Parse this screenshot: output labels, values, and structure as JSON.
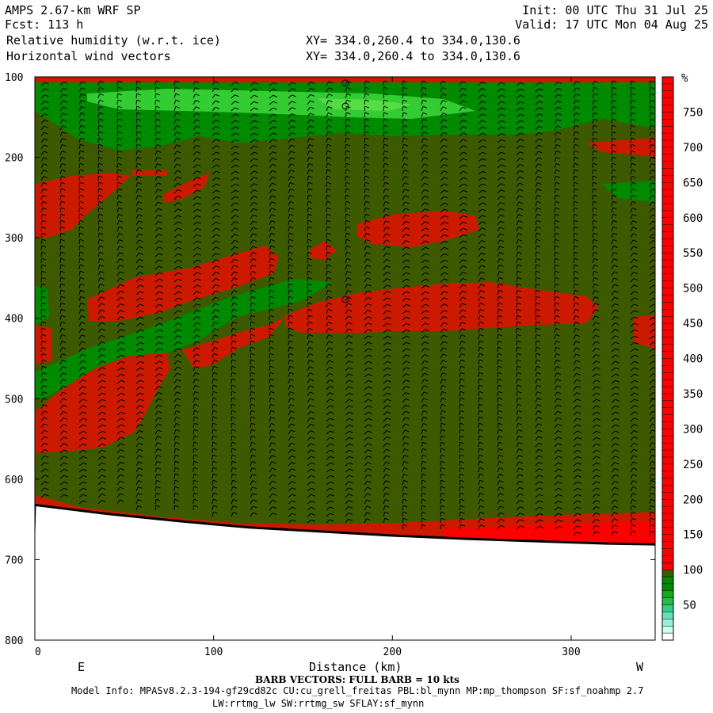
{
  "header": {
    "model": "AMPS 2.67-km WRF SP",
    "fcst": "Fcst: 113 h",
    "var1": "Relative humidity (w.r.t. ice)",
    "var2": "Horizontal wind vectors",
    "init": "Init: 00 UTC Thu 31 Jul 25",
    "valid": "Valid: 17 UTC Mon 04 Aug 25",
    "xy1": "XY= 334.0,260.4 to 334.0,130.6",
    "xy2": "XY= 334.0,260.4 to 334.0,130.6"
  },
  "footer": {
    "barb_note": "BARB VECTORS: FULL BARB = 10 kts",
    "model_info": "Model Info: MPASv8.2.3-194-gf29cd82c CU:cu_grell_freitas PBL:bl_mynn MP:mp_thompson SF:sf_noahmp 2.7",
    "model_info2": "LW:rrtmg_lw SW:rrtmg_sw SFLAY:sf_mynn"
  },
  "colors": {
    "background_olive": "#3d5a00",
    "red": "#cc1a00",
    "bright_red": "#ff0000",
    "green": "#008a00",
    "light_green": "#33cc33"
  },
  "chart_data": {
    "type": "heatmap",
    "title": "Relative humidity (w.r.t. ice)",
    "xlabel": "Distance (km)",
    "ylabel": "",
    "x_ticks": [
      0,
      100,
      200,
      300
    ],
    "y_ticks": [
      100,
      200,
      300,
      400,
      500,
      600,
      700,
      800
    ],
    "xlim": [
      0,
      347
    ],
    "ylim": [
      100,
      800
    ],
    "x_end_labels": {
      "left": "E",
      "right": "W"
    },
    "colorbar": {
      "unit": "%",
      "ticks": [
        50,
        100,
        150,
        200,
        250,
        300,
        350,
        400,
        450,
        500,
        550,
        600,
        650,
        700,
        750
      ],
      "colors": [
        "#ffffff",
        "#ccffee",
        "#99eedd",
        "#66ddbb",
        "#33cc88",
        "#22bb44",
        "#11aa22",
        "#008a00",
        "#3d5a00",
        "#ff0000"
      ],
      "bounds": [
        0,
        10,
        20,
        30,
        40,
        50,
        60,
        70,
        90,
        100,
        800
      ]
    },
    "terrain_pressure": [
      [
        0,
        632
      ],
      [
        40,
        643
      ],
      [
        80,
        652
      ],
      [
        120,
        660
      ],
      [
        160,
        665
      ],
      [
        200,
        670
      ],
      [
        240,
        674
      ],
      [
        280,
        677
      ],
      [
        320,
        680
      ],
      [
        347,
        681
      ]
    ],
    "humid_regions": [
      {
        "name": "upper dry band",
        "color": "green",
        "range_km": [
          20,
          347
        ],
        "pressure": [
          110,
          170
        ]
      },
      {
        "name": "saturated layer west",
        "color": "red",
        "range_km": [
          190,
          315
        ],
        "pressure": [
          350,
          420
        ]
      },
      {
        "name": "saturated layer east",
        "color": "red",
        "range_km": [
          0,
          90
        ],
        "pressure": [
          430,
          570
        ]
      },
      {
        "name": "near-surface moist layer",
        "color": "red",
        "range_km": [
          160,
          347
        ],
        "pressure": [
          655,
          680
        ]
      }
    ]
  }
}
